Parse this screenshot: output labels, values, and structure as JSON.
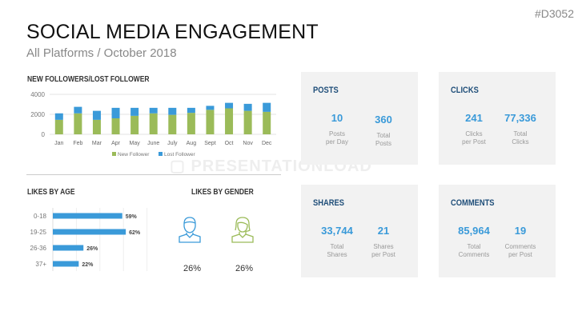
{
  "slide_code": "#D3052",
  "title": "SOCIAL MEDIA ENGAGEMENT",
  "subtitle": "All Platforms / October 2018",
  "watermark": "PRESENTATIONLOAD",
  "colors": {
    "green": "#9bbb59",
    "blue": "#3a9ad9",
    "card": "#f2f2f2",
    "heading": "#1f4e79"
  },
  "chart_data": [
    {
      "type": "bar",
      "stacked": true,
      "title": "NEW FOLLOWERS/LOST FOLLOWER",
      "categories": [
        "Jan",
        "Feb",
        "Mar",
        "Apr",
        "May",
        "June",
        "July",
        "Aug",
        "Sept",
        "Oct",
        "Nov",
        "Dec"
      ],
      "yticks": [
        "0",
        "2000",
        "4000"
      ],
      "ylim": [
        0,
        4000
      ],
      "grid": true,
      "legend": "bottom",
      "series": [
        {
          "name": "New Follower",
          "color": "#9bbb59",
          "values": [
            1450,
            2100,
            1450,
            1600,
            1850,
            2100,
            1950,
            2150,
            2450,
            2600,
            2350,
            2250
          ]
        },
        {
          "name": "Lost Follower",
          "color": "#3a9ad9",
          "values": [
            650,
            650,
            900,
            1050,
            800,
            550,
            700,
            500,
            400,
            550,
            700,
            900
          ]
        }
      ]
    },
    {
      "type": "bar",
      "orientation": "horizontal",
      "title": "LIKES BY AGE",
      "categories": [
        "0-18",
        "19-25",
        "26-36",
        "37+"
      ],
      "values": [
        59,
        62,
        26,
        22
      ],
      "labels": [
        "59%",
        "62%",
        "26%",
        "22%"
      ],
      "xlim": [
        0,
        80
      ],
      "grid": true
    }
  ],
  "gender": {
    "title": "LIKES BY GENDER",
    "male": "26%",
    "female": "26%"
  },
  "cards": [
    {
      "title": "POSTS",
      "stats": [
        {
          "value": "10",
          "label1": "Posts",
          "label2": "per Day"
        },
        {
          "value": "360",
          "label1": "Total",
          "label2": "Posts"
        }
      ]
    },
    {
      "title": "CLICKS",
      "stats": [
        {
          "value": "241",
          "label1": "Clicks",
          "label2": "per Post"
        },
        {
          "value": "77,336",
          "label1": "Total",
          "label2": "Clicks"
        }
      ]
    },
    {
      "title": "SHARES",
      "stats": [
        {
          "value": "33,744",
          "label1": "Total",
          "label2": "Shares"
        },
        {
          "value": "21",
          "label1": "Shares",
          "label2": "per Post"
        }
      ]
    },
    {
      "title": "COMMENTS",
      "stats": [
        {
          "value": "85,964",
          "label1": "Total",
          "label2": "Comments"
        },
        {
          "value": "19",
          "label1": "Comments",
          "label2": "per Post"
        }
      ]
    }
  ]
}
